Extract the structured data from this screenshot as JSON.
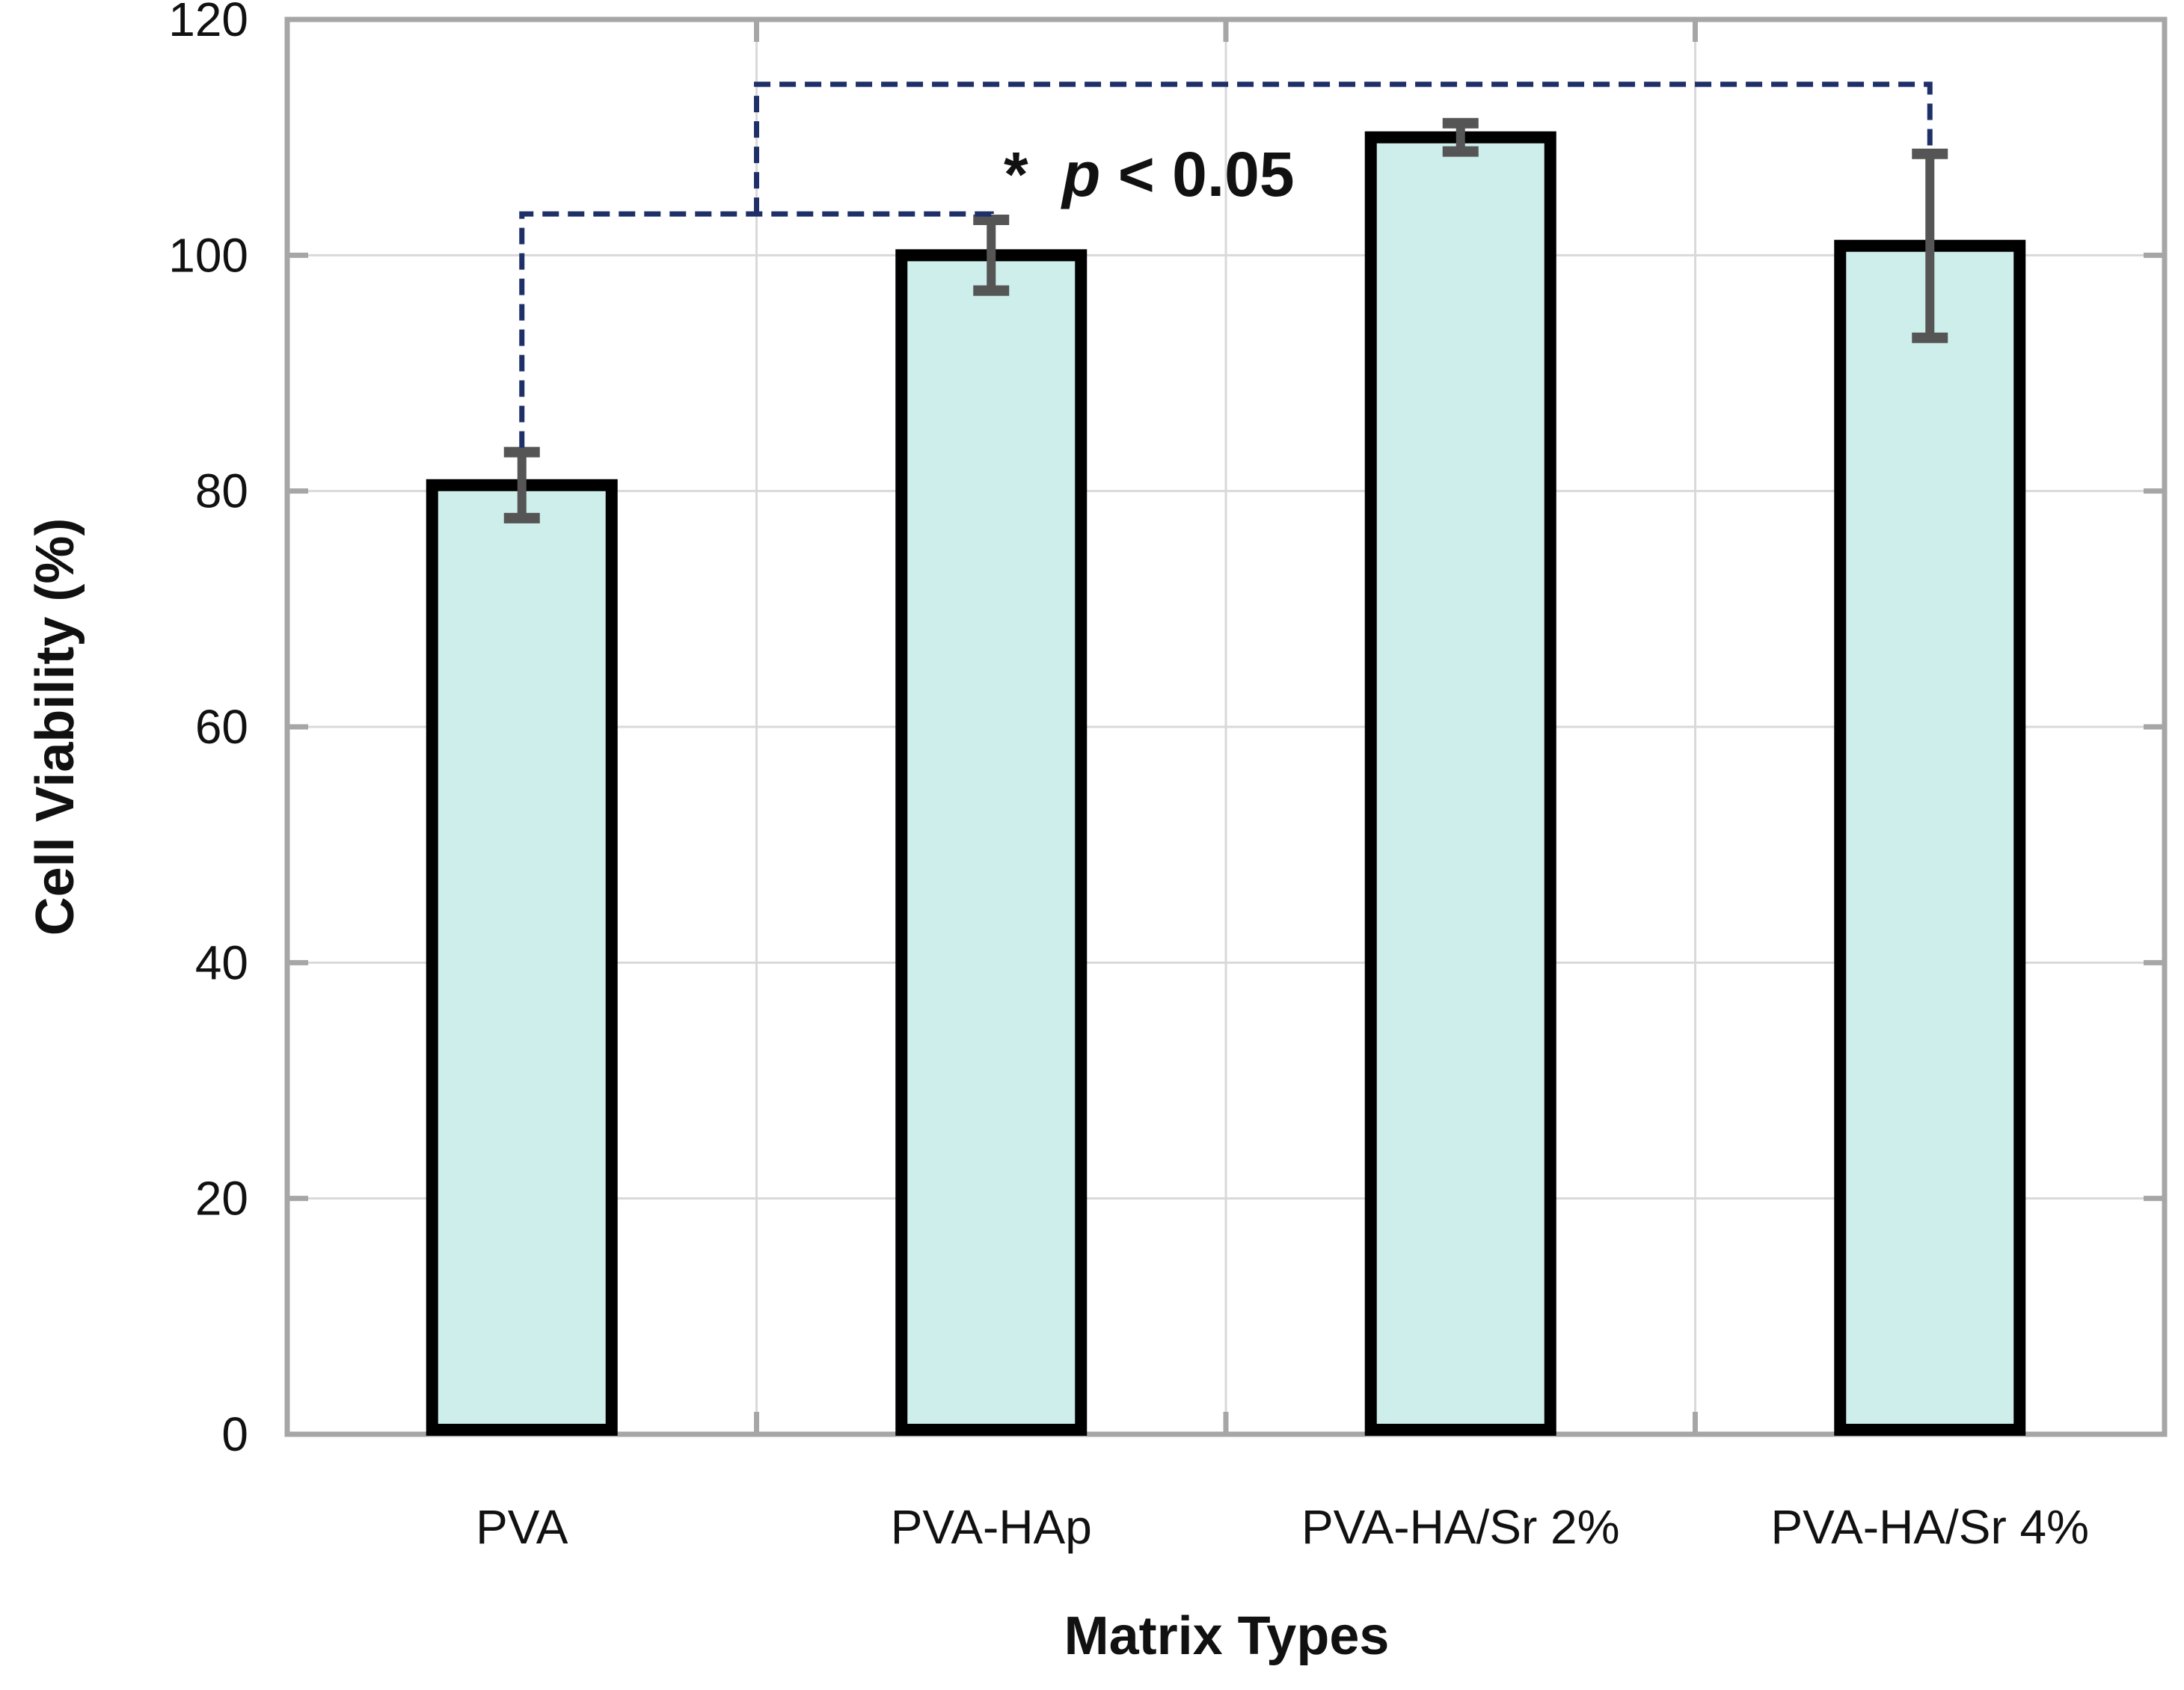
{
  "chart_data": {
    "type": "bar",
    "title": "",
    "xlabel": "Matrix Types",
    "ylabel": "Cell Viability (%)",
    "ylim": [
      0,
      120
    ],
    "yticks": [
      0,
      20,
      40,
      60,
      80,
      100,
      120
    ],
    "grid": true,
    "categories": [
      "PVA",
      "PVA-HAp",
      "PVA-HA/Sr 2%",
      "PVA-HA/Sr 4%"
    ],
    "values": [
      80.5,
      100,
      110,
      100.8
    ],
    "errors": [
      2.8,
      3.0,
      1.2,
      7.8
    ],
    "annotation": {
      "star": "*",
      "p": "p",
      "rest": "< 0.05",
      "comparisons": [
        [
          0,
          1
        ],
        [
          0,
          3
        ]
      ]
    },
    "colors": {
      "bar_fill": "#cdeeea",
      "bar_stroke": "#000000",
      "error_bar": "#555555",
      "bracket": "#1f3068",
      "frame": "#a6a6a6",
      "grid": "#d9d9d9"
    }
  }
}
